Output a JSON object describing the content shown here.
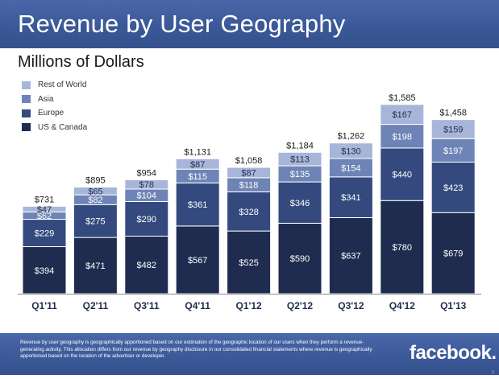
{
  "header": {
    "title": "Revenue by User Geography"
  },
  "chart_data": {
    "type": "bar",
    "stacked": true,
    "title": "Revenue by User Geography",
    "subtitle": "Millions of Dollars",
    "categories": [
      "Q1'11",
      "Q2'11",
      "Q3'11",
      "Q4'11",
      "Q1'12",
      "Q2'12",
      "Q3'12",
      "Q4'12",
      "Q1'13"
    ],
    "series": [
      {
        "name": "US & Canada",
        "color": "#1f2c4f",
        "values": [
          394,
          471,
          482,
          567,
          525,
          590,
          637,
          780,
          679
        ],
        "labels": [
          "$394",
          "$471",
          "$482",
          "$567",
          "$525",
          "$590",
          "$637",
          "$780",
          "$679"
        ]
      },
      {
        "name": "Europe",
        "color": "#344a7e",
        "values": [
          229,
          275,
          290,
          361,
          328,
          346,
          341,
          440,
          423
        ],
        "labels": [
          "$229",
          "$275",
          "$290",
          "$361",
          "$328",
          "$346",
          "$341",
          "$440",
          "$423"
        ]
      },
      {
        "name": "Asia",
        "color": "#6e84b6",
        "values": [
          62,
          82,
          104,
          115,
          118,
          135,
          154,
          198,
          197
        ],
        "labels": [
          "$62",
          "$82",
          "$104",
          "$115",
          "$118",
          "$135",
          "$154",
          "$198",
          "$197"
        ]
      },
      {
        "name": "Rest of World",
        "color": "#a7b6d8",
        "values": [
          47,
          65,
          78,
          87,
          87,
          113,
          130,
          167,
          159
        ],
        "labels": [
          "$47",
          "$65",
          "$78",
          "$87",
          "$87",
          "$113",
          "$130",
          "$167",
          "$159"
        ]
      }
    ],
    "totals": [
      731,
      895,
      954,
      1131,
      1058,
      1184,
      1262,
      1585,
      1458
    ],
    "total_labels": [
      "$731",
      "$895",
      "$954",
      "$1,131",
      "$1,058",
      "$1,184",
      "$1,262",
      "$1,585",
      "$1,458"
    ],
    "legend": [
      "Rest of World",
      "Asia",
      "Europe",
      "US & Canada"
    ],
    "legend_position": "top-left",
    "xlabel": "",
    "ylabel": "",
    "ylim": [
      0,
      1700
    ],
    "grid": false
  },
  "footer": {
    "note": "Revenue by user geography is geographically apportioned based on our estimation of the geographic location of our users when they perform a revenue-generating activity. This allocation differs from our revenue by geography disclosure in our consolidated financial statements where revenue is geographically apportioned based on the location of the advertiser or developer.",
    "logo": "facebook.",
    "page_number": "8"
  }
}
